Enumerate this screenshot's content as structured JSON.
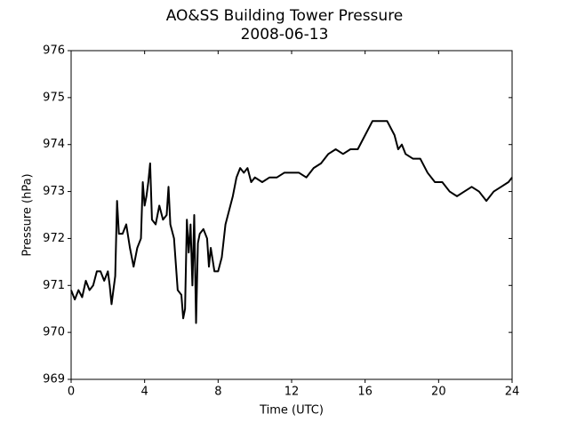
{
  "chart_data": {
    "type": "line",
    "title": "AO&SS Building Tower Pressure",
    "subtitle": "2008-06-13",
    "x_label": "Time (UTC)",
    "y_label": "Pressure (hPa)",
    "x": [
      0,
      0.2,
      0.4,
      0.6,
      0.8,
      1.0,
      1.2,
      1.4,
      1.6,
      1.8,
      2.0,
      2.1,
      2.2,
      2.4,
      2.5,
      2.6,
      2.8,
      3.0,
      3.2,
      3.4,
      3.6,
      3.8,
      3.9,
      4.0,
      4.1,
      4.2,
      4.3,
      4.4,
      4.6,
      4.8,
      5.0,
      5.2,
      5.3,
      5.4,
      5.6,
      5.8,
      6.0,
      6.1,
      6.2,
      6.3,
      6.4,
      6.5,
      6.6,
      6.7,
      6.8,
      6.9,
      7.0,
      7.2,
      7.4,
      7.5,
      7.6,
      7.8,
      8.0,
      8.2,
      8.4,
      8.6,
      8.8,
      9.0,
      9.2,
      9.4,
      9.6,
      9.8,
      10.0,
      10.4,
      10.8,
      11.2,
      11.6,
      12.0,
      12.4,
      12.8,
      13.2,
      13.6,
      14.0,
      14.4,
      14.8,
      15.2,
      15.6,
      16.0,
      16.4,
      16.8,
      17.2,
      17.6,
      17.8,
      18.0,
      18.2,
      18.6,
      19.0,
      19.4,
      19.8,
      20.2,
      20.6,
      21.0,
      21.4,
      21.8,
      22.2,
      22.6,
      23.0,
      23.4,
      23.8,
      24.0
    ],
    "series": [
      {
        "name": "Pressure",
        "color": "#000000",
        "values": [
          970.9,
          970.7,
          970.9,
          970.75,
          971.1,
          970.9,
          971.0,
          971.3,
          971.3,
          971.1,
          971.3,
          971.0,
          970.6,
          971.2,
          972.8,
          972.1,
          972.1,
          972.3,
          971.8,
          971.4,
          971.8,
          972.0,
          973.2,
          972.7,
          972.9,
          973.2,
          973.6,
          972.4,
          972.3,
          972.7,
          972.4,
          972.5,
          973.1,
          972.3,
          972.0,
          970.9,
          970.8,
          970.3,
          970.5,
          972.4,
          971.7,
          972.3,
          971.0,
          972.5,
          970.2,
          971.9,
          972.1,
          972.2,
          972.0,
          971.4,
          971.8,
          971.3,
          971.3,
          971.6,
          972.3,
          972.6,
          972.9,
          973.3,
          973.5,
          973.4,
          973.5,
          973.2,
          973.3,
          973.2,
          973.3,
          973.3,
          973.4,
          973.4,
          973.4,
          973.3,
          973.5,
          973.6,
          973.8,
          973.9,
          973.8,
          973.9,
          973.9,
          974.2,
          974.5,
          974.5,
          974.5,
          974.2,
          973.9,
          974.0,
          973.8,
          973.7,
          973.7,
          973.4,
          973.2,
          973.2,
          973.0,
          972.9,
          973.0,
          973.1,
          973.0,
          972.8,
          973.0,
          973.1,
          973.2,
          973.3
        ]
      }
    ],
    "xlim": [
      0,
      24
    ],
    "xticks": [
      0,
      4,
      8,
      12,
      16,
      20,
      24
    ],
    "ylim": [
      969,
      976
    ],
    "yticks": [
      969,
      970,
      971,
      972,
      973,
      974,
      975,
      976
    ],
    "grid": false
  }
}
